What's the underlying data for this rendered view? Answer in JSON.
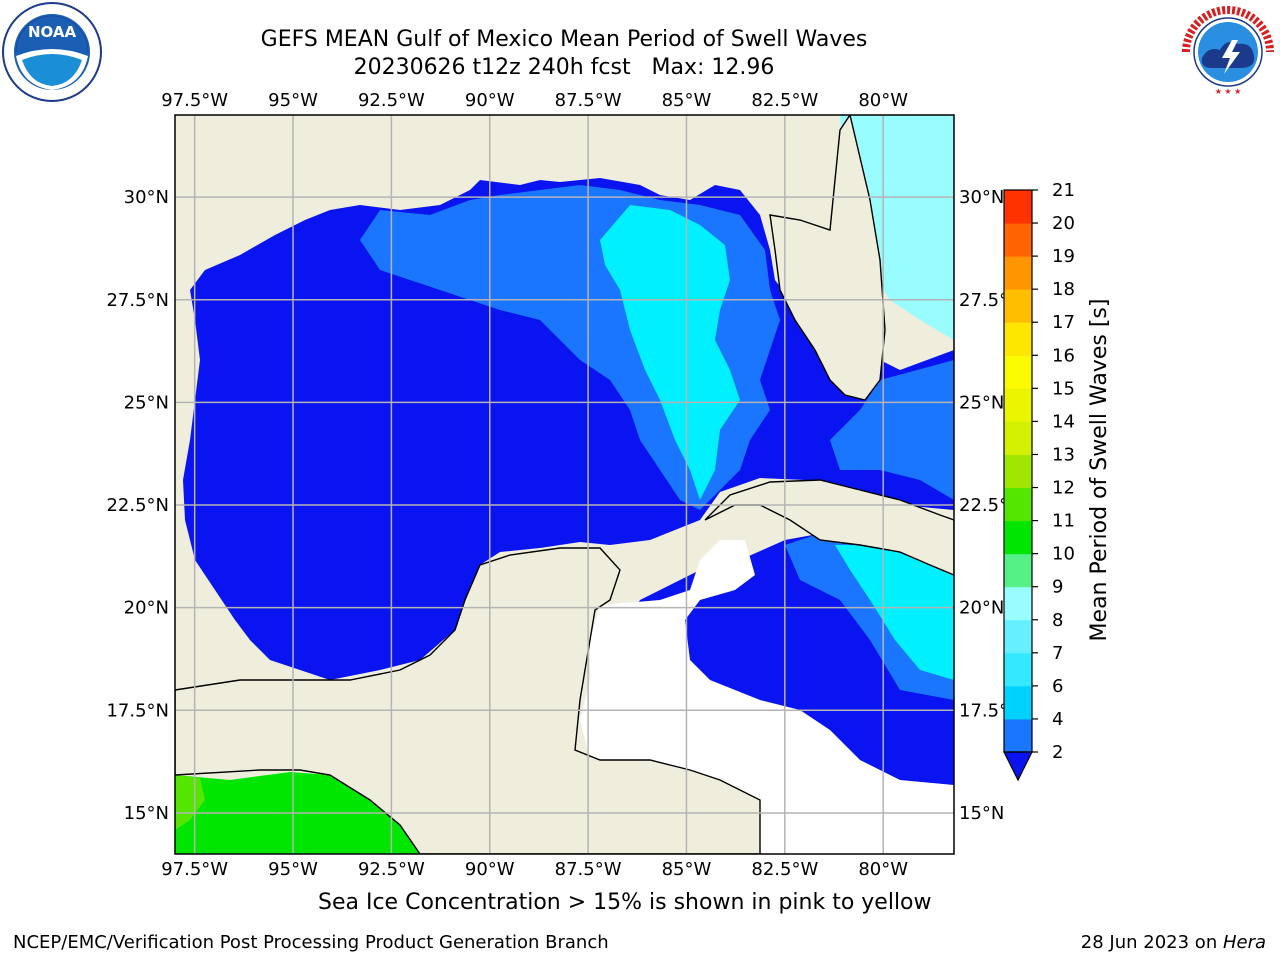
{
  "header": {
    "title": "GEFS MEAN Gulf of Mexico Mean Period of Swell Waves",
    "subtitle": "20230626 t12z 240h fcst   Max: 12.96"
  },
  "map": {
    "lon_labels": [
      "97.5°W",
      "95°W",
      "92.5°W",
      "90°W",
      "87.5°W",
      "85°W",
      "82.5°W",
      "80°W"
    ],
    "lat_labels": [
      "30°N",
      "27.5°N",
      "25°N",
      "22.5°N",
      "20°N",
      "17.5°N",
      "15°N"
    ],
    "lon_range": [
      -98,
      -78.2
    ],
    "lat_range": [
      14,
      32
    ]
  },
  "colorbar": {
    "label": "Mean Period of Swell Waves [s]",
    "ticks": [
      "2",
      "4",
      "6",
      "7",
      "8",
      "9",
      "10",
      "11",
      "12",
      "13",
      "14",
      "15",
      "16",
      "17",
      "18",
      "19",
      "20",
      "21"
    ],
    "colors": [
      "#1a75ff",
      "#00d2ff",
      "#33e8ff",
      "#66f0ff",
      "#99fcff",
      "#55f086",
      "#00e600",
      "#55e600",
      "#a0e600",
      "#d2f000",
      "#ecf500",
      "#fafa00",
      "#ffe600",
      "#ffbe00",
      "#ff9600",
      "#ff6400",
      "#ff3200",
      "#ff0000"
    ],
    "under_color": "#0a14f0"
  },
  "logos": {
    "noaa_text": "NOAA",
    "noaa_ring": "NATIONAL OCEANIC AND ATMOSPHERIC ADMINISTRATION · U.S. DEPARTMENT OF COMMERCE",
    "nws_ring": "NATIONAL WEATHER SERVICE"
  },
  "footer": {
    "note": "Sea Ice Concentration > 15% is shown in pink to yellow",
    "credit": "NCEP/EMC/Verification Post Processing Product Generation Branch",
    "date": "28 Jun 2023 on ",
    "host": "Hera"
  }
}
